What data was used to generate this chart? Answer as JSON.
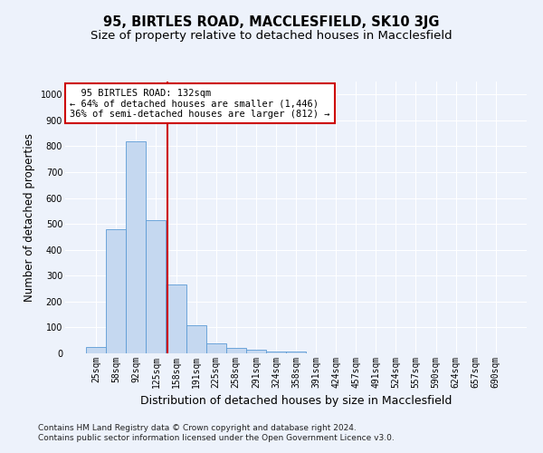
{
  "title": "95, BIRTLES ROAD, MACCLESFIELD, SK10 3JG",
  "subtitle": "Size of property relative to detached houses in Macclesfield",
  "xlabel": "Distribution of detached houses by size in Macclesfield",
  "ylabel": "Number of detached properties",
  "categories": [
    "25sqm",
    "58sqm",
    "92sqm",
    "125sqm",
    "158sqm",
    "191sqm",
    "225sqm",
    "258sqm",
    "291sqm",
    "324sqm",
    "358sqm",
    "391sqm",
    "424sqm",
    "457sqm",
    "491sqm",
    "524sqm",
    "557sqm",
    "590sqm",
    "624sqm",
    "657sqm",
    "690sqm"
  ],
  "values": [
    25,
    480,
    820,
    515,
    265,
    110,
    40,
    20,
    15,
    8,
    7,
    0,
    0,
    0,
    0,
    0,
    0,
    0,
    0,
    0,
    0
  ],
  "bar_color": "#c5d8f0",
  "bar_edge_color": "#5b9bd5",
  "bar_width": 1.0,
  "ylim": [
    0,
    1050
  ],
  "yticks": [
    0,
    100,
    200,
    300,
    400,
    500,
    600,
    700,
    800,
    900,
    1000
  ],
  "red_line_x": 3.58,
  "annotation_text": "  95 BIRTLES ROAD: 132sqm\n← 64% of detached houses are smaller (1,446)\n36% of semi-detached houses are larger (812) →",
  "annotation_box_color": "#ffffff",
  "annotation_box_edge": "#cc0000",
  "red_line_color": "#cc0000",
  "footnote": "Contains HM Land Registry data © Crown copyright and database right 2024.\nContains public sector information licensed under the Open Government Licence v3.0.",
  "background_color": "#edf2fb",
  "grid_color": "#ffffff",
  "title_fontsize": 10.5,
  "subtitle_fontsize": 9.5,
  "ylabel_fontsize": 8.5,
  "xlabel_fontsize": 9,
  "tick_fontsize": 7,
  "annot_fontsize": 7.5,
  "footnote_fontsize": 6.5
}
